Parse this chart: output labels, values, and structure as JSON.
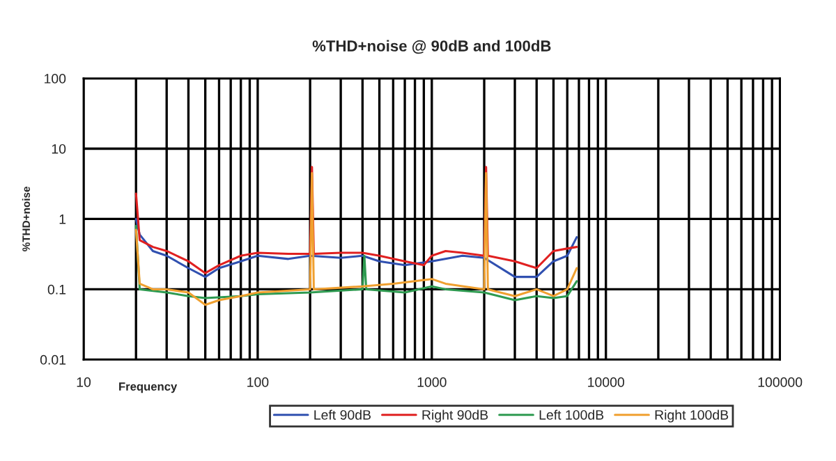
{
  "chart_data": {
    "type": "line",
    "title": "%THD+noise @ 90dB and 100dB",
    "xlabel": "Frequency",
    "ylabel": "%THD+noise",
    "log": "xy",
    "grid": true,
    "legend": "bottom",
    "line_style": "solid",
    "marker": "none",
    "xlim": [
      10,
      100000
    ],
    "ylim": [
      0.01,
      100
    ],
    "xticks": [
      10,
      {
        "value": 20,
        "label": null
      },
      {
        "value": 30,
        "label": null
      },
      {
        "value": 40,
        "label": null
      },
      {
        "value": 50,
        "label": null
      },
      {
        "value": 60,
        "label": null
      },
      {
        "value": 70,
        "label": null
      },
      {
        "value": 80,
        "label": null
      },
      {
        "value": 90,
        "label": null
      },
      100,
      {
        "value": 200,
        "label": null
      },
      {
        "value": 300,
        "label": null
      },
      {
        "value": 400,
        "label": null
      },
      {
        "value": 500,
        "label": null
      },
      {
        "value": 600,
        "label": null
      },
      {
        "value": 700,
        "label": null
      },
      {
        "value": 800,
        "label": null
      },
      {
        "value": 900,
        "label": null
      },
      1000,
      {
        "value": 2000,
        "label": null
      },
      {
        "value": 3000,
        "label": null
      },
      {
        "value": 4000,
        "label": null
      },
      {
        "value": 5000,
        "label": null
      },
      {
        "value": 6000,
        "label": null
      },
      {
        "value": 7000,
        "label": null
      },
      {
        "value": 8000,
        "label": null
      },
      {
        "value": 9000,
        "label": null
      },
      10000,
      {
        "value": 20000,
        "label": null
      },
      {
        "value": 30000,
        "label": null
      },
      {
        "value": 40000,
        "label": null
      },
      {
        "value": 50000,
        "label": null
      },
      {
        "value": 60000,
        "label": null
      },
      {
        "value": 70000,
        "label": null
      },
      {
        "value": 80000,
        "label": null
      },
      {
        "value": 90000,
        "label": null
      },
      100000
    ],
    "yticks": [
      0.01,
      0.1,
      1,
      10,
      100
    ],
    "series": [
      {
        "name": "Left 90dB",
        "color": "#3050b0",
        "x": [
          20,
          21,
          25,
          30,
          40,
          50,
          60,
          80,
          100,
          150,
          200,
          300,
          400,
          500,
          700,
          1000,
          1500,
          2000,
          3000,
          4000,
          5000,
          6000,
          6800
        ],
        "values": [
          1.0,
          0.6,
          0.35,
          0.3,
          0.2,
          0.15,
          0.2,
          0.25,
          0.3,
          0.27,
          0.3,
          0.28,
          0.3,
          0.25,
          0.22,
          0.25,
          0.3,
          0.28,
          0.15,
          0.15,
          0.25,
          0.3,
          0.55
        ]
      },
      {
        "name": "Right 90dB",
        "color": "#e02020",
        "x": [
          20,
          21,
          25,
          30,
          40,
          50,
          60,
          80,
          100,
          150,
          200,
          205,
          210,
          300,
          400,
          500,
          700,
          900,
          1000,
          1200,
          1500,
          2000,
          2050,
          2100,
          3000,
          4000,
          5000,
          6000,
          6800
        ],
        "values": [
          2.3,
          0.5,
          0.4,
          0.35,
          0.25,
          0.17,
          0.22,
          0.3,
          0.33,
          0.32,
          0.32,
          5.5,
          0.32,
          0.33,
          0.33,
          0.3,
          0.25,
          0.22,
          0.3,
          0.35,
          0.33,
          0.3,
          5.5,
          0.3,
          0.25,
          0.2,
          0.35,
          0.38,
          0.4
        ]
      },
      {
        "name": "Left 100dB",
        "color": "#2e9a50",
        "x": [
          20,
          21,
          30,
          40,
          50,
          80,
          100,
          200,
          400,
          410,
          420,
          700,
          1000,
          1200,
          2000,
          3000,
          4000,
          5000,
          6000,
          6800
        ],
        "values": [
          0.8,
          0.1,
          0.09,
          0.08,
          0.075,
          0.08,
          0.085,
          0.09,
          0.1,
          0.3,
          0.1,
          0.09,
          0.11,
          0.1,
          0.09,
          0.07,
          0.08,
          0.075,
          0.08,
          0.13
        ]
      },
      {
        "name": "Right 100dB",
        "color": "#f0a030",
        "x": [
          20,
          21,
          25,
          30,
          40,
          50,
          60,
          80,
          100,
          200,
          205,
          210,
          400,
          600,
          1000,
          1200,
          2000,
          2050,
          2100,
          3000,
          4000,
          5000,
          6000,
          6800
        ],
        "values": [
          0.7,
          0.12,
          0.1,
          0.1,
          0.09,
          0.06,
          0.07,
          0.08,
          0.09,
          0.1,
          4.5,
          0.1,
          0.11,
          0.12,
          0.14,
          0.12,
          0.1,
          4.5,
          0.1,
          0.08,
          0.1,
          0.08,
          0.1,
          0.2
        ]
      }
    ]
  }
}
